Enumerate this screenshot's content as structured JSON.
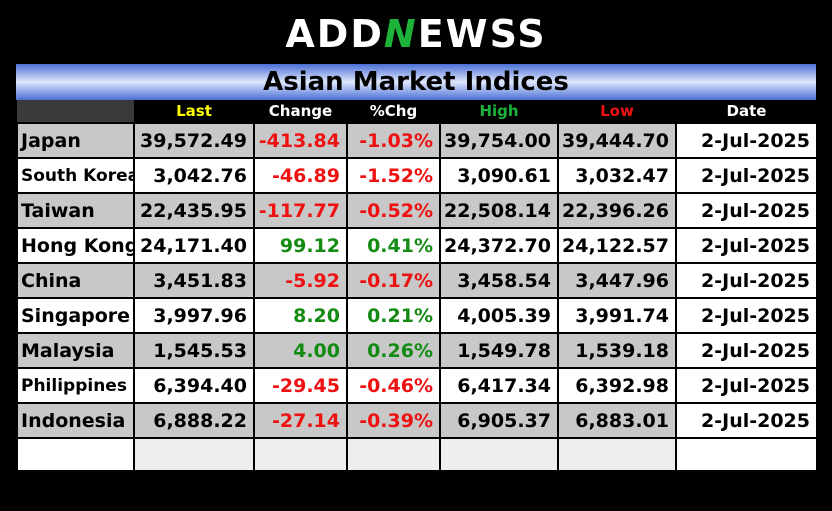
{
  "brand": {
    "part1": "ADD",
    "part2": "N",
    "part3": "EWSS"
  },
  "title": "Asian Market Indices",
  "header": {
    "last": "Last",
    "change": "Change",
    "pct": "%Chg",
    "high": "High",
    "low": "Low",
    "date": "Date",
    "colors": {
      "last": "#ffff00",
      "change": "#ffffff",
      "pct": "#ffffff",
      "high": "#1db33a",
      "low": "#ee1111",
      "date": "#ffffff"
    }
  },
  "rows": [
    {
      "name": "Japan",
      "last": "39,572.49",
      "change": "-413.84",
      "pct": "-1.03%",
      "high": "39,754.00",
      "low": "39,444.70",
      "date": "2-Jul-2025",
      "dir": "neg"
    },
    {
      "name": "South Korea",
      "last": "3,042.76",
      "change": "-46.89",
      "pct": "-1.52%",
      "high": "3,090.61",
      "low": "3,032.47",
      "date": "2-Jul-2025",
      "dir": "neg"
    },
    {
      "name": "Taiwan",
      "last": "22,435.95",
      "change": "-117.77",
      "pct": "-0.52%",
      "high": "22,508.14",
      "low": "22,396.26",
      "date": "2-Jul-2025",
      "dir": "neg"
    },
    {
      "name": "Hong Kong",
      "last": "24,171.40",
      "change": "99.12",
      "pct": "0.41%",
      "high": "24,372.70",
      "low": "24,122.57",
      "date": "2-Jul-2025",
      "dir": "pos"
    },
    {
      "name": "China",
      "last": "3,451.83",
      "change": "-5.92",
      "pct": "-0.17%",
      "high": "3,458.54",
      "low": "3,447.96",
      "date": "2-Jul-2025",
      "dir": "neg"
    },
    {
      "name": "Singapore",
      "last": "3,997.96",
      "change": "8.20",
      "pct": "0.21%",
      "high": "4,005.39",
      "low": "3,991.74",
      "date": "2-Jul-2025",
      "dir": "pos"
    },
    {
      "name": "Malaysia",
      "last": "1,545.53",
      "change": "4.00",
      "pct": "0.26%",
      "high": "1,549.78",
      "low": "1,539.18",
      "date": "2-Jul-2025",
      "dir": "pos"
    },
    {
      "name": "Philippines",
      "last": "6,394.40",
      "change": "-29.45",
      "pct": "-0.46%",
      "high": "6,417.34",
      "low": "6,392.98",
      "date": "2-Jul-2025",
      "dir": "neg"
    },
    {
      "name": "Indonesia",
      "last": "6,888.22",
      "change": "-27.14",
      "pct": "-0.39%",
      "high": "6,905.37",
      "low": "6,883.01",
      "date": "2-Jul-2025",
      "dir": "neg"
    }
  ]
}
